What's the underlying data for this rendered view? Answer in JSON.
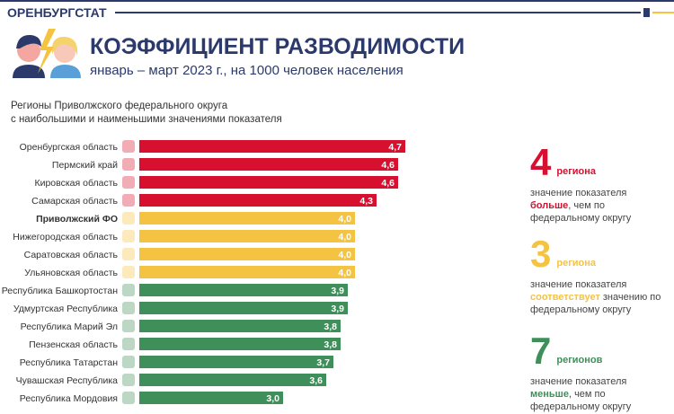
{
  "header": {
    "brand": "ОРЕНБУРГСТАТ",
    "title": "КОЭФФИЦИЕНТ РАЗВОДИМОСТИ",
    "subtitle": "январь – март 2023 г., на 1000 человек населения"
  },
  "description": [
    "Регионы Приволжского федерального округа",
    "с наибольшими и наименьшими значениями показателя"
  ],
  "colors": {
    "above": "#d7102f",
    "equal": "#f5c342",
    "below": "#3f8f5a",
    "navy": "#2b3a6b"
  },
  "chart_data": {
    "type": "bar",
    "orientation": "horizontal",
    "xlim": [
      1,
      5
    ],
    "categories": [
      "Оренбургская область",
      "Пермский край",
      "Кировская область",
      "Самарская область",
      "Приволжский ФО",
      "Нижегородская область",
      "Саратовская область",
      "Ульяновская область",
      "Республика Башкортостан",
      "Удмуртская Республика",
      "Республика Марий Эл",
      "Пензенская область",
      "Республика Татарстан",
      "Чувашская Республика",
      "Республика Мордовия"
    ],
    "values": [
      4.7,
      4.6,
      4.6,
      4.3,
      4.0,
      4.0,
      4.0,
      4.0,
      3.9,
      3.9,
      3.8,
      3.8,
      3.7,
      3.6,
      3.0
    ],
    "labels": [
      "4,7",
      "4,6",
      "4,6",
      "4,3",
      "4,0",
      "4,0",
      "4,0",
      "4,0",
      "3,9",
      "3,9",
      "3,8",
      "3,8",
      "3,7",
      "3,6",
      "3,0"
    ],
    "groups": [
      "above",
      "above",
      "above",
      "above",
      "equal",
      "equal",
      "equal",
      "equal",
      "below",
      "below",
      "below",
      "below",
      "below",
      "below",
      "below"
    ]
  },
  "stats": [
    {
      "number": "4",
      "unit": "региона",
      "pre": "значение показателя ",
      "key": "больше",
      "post": ", чем по федеральному округу"
    },
    {
      "number": "3",
      "unit": "региона",
      "pre": "значение показателя ",
      "key": "соответствует",
      "post": " значению по федеральному округу"
    },
    {
      "number": "7",
      "unit": "регионов",
      "pre": "значение показателя ",
      "key": "меньше",
      "post": ", чем по федеральному округу"
    }
  ]
}
